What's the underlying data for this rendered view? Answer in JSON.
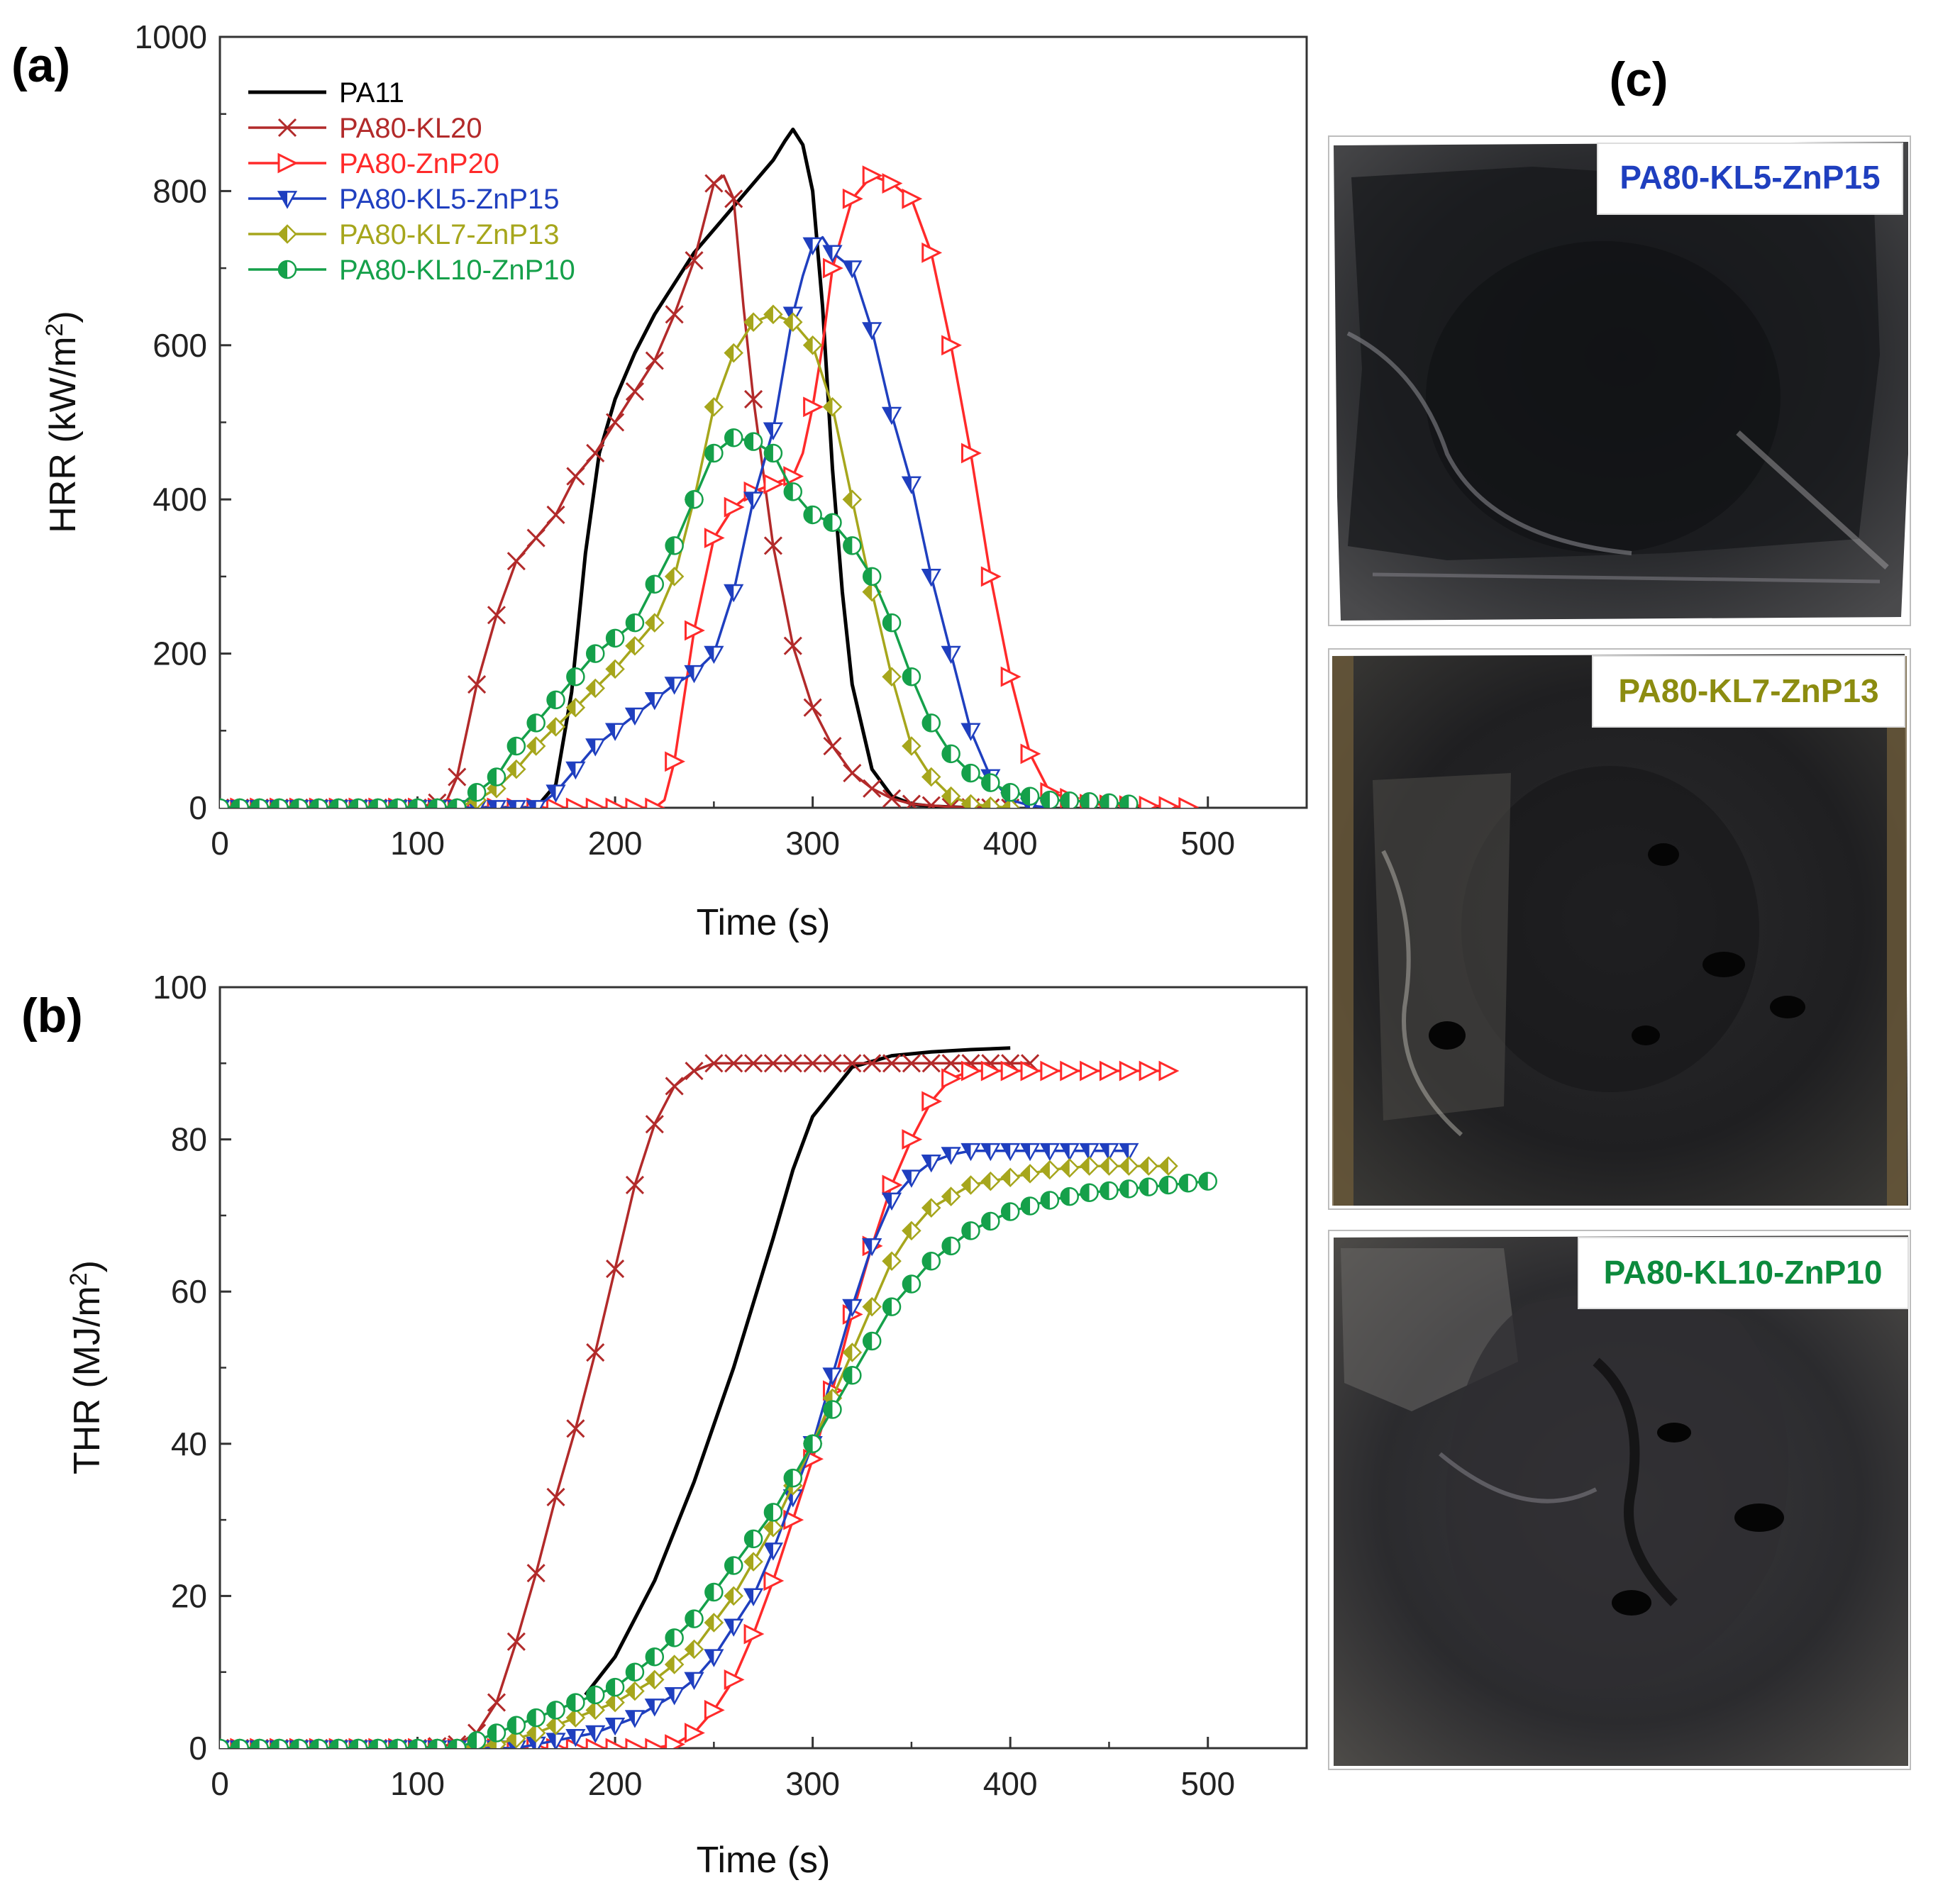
{
  "figure": {
    "panel_labels": [
      "(a)",
      "(b)",
      "(c)"
    ],
    "photo_labels": [
      {
        "text": "PA80-KL5-ZnP15",
        "color": "#1f3fbf"
      },
      {
        "text": "PA80-KL7-ZnP13",
        "color": "#8c8c10"
      },
      {
        "text": "PA80-KL10-ZnP10",
        "color": "#0c8a3c"
      }
    ]
  },
  "chart_data": [
    {
      "type": "line",
      "panel": "(a)",
      "xlabel": "Time (s)",
      "ylabel": "HRR (kW/m2)",
      "ylabel_main": "HRR (kW/m",
      "ylabel_sup": "2",
      "ylabel_end": ")",
      "xlim": [
        0,
        550
      ],
      "ylim": [
        0,
        1000
      ],
      "xticks": [
        0,
        100,
        200,
        300,
        400,
        500
      ],
      "yticks": [
        0,
        200,
        400,
        600,
        800,
        1000
      ],
      "legend": "top-left",
      "series": [
        {
          "name": "PA11",
          "color": "#000000",
          "marker": "none",
          "x": [
            0,
            160,
            170,
            178,
            185,
            192,
            200,
            210,
            220,
            230,
            240,
            250,
            260,
            270,
            280,
            286,
            290,
            295,
            300,
            305,
            310,
            315,
            320,
            330,
            340,
            350,
            360,
            380,
            400
          ],
          "y": [
            0,
            0,
            30,
            150,
            330,
            460,
            530,
            590,
            640,
            680,
            720,
            750,
            780,
            810,
            840,
            865,
            880,
            860,
            800,
            650,
            440,
            280,
            160,
            50,
            15,
            5,
            2,
            0,
            0
          ]
        },
        {
          "name": "PA80-KL20",
          "color": "#b22a2a",
          "marker": "x",
          "x": [
            0,
            100,
            115,
            120,
            130,
            140,
            150,
            160,
            170,
            180,
            190,
            200,
            210,
            220,
            230,
            240,
            245,
            250,
            255,
            260,
            265,
            270,
            280,
            290,
            300,
            310,
            320,
            330,
            340,
            350,
            370,
            400
          ],
          "y": [
            0,
            0,
            10,
            40,
            160,
            250,
            320,
            350,
            380,
            430,
            460,
            500,
            540,
            580,
            640,
            710,
            760,
            810,
            820,
            790,
            650,
            530,
            340,
            210,
            130,
            80,
            45,
            25,
            12,
            5,
            1,
            0
          ]
        },
        {
          "name": "PA80-ZnP20",
          "color": "#ff2a2a",
          "marker": "triangle-right",
          "x": [
            0,
            220,
            225,
            230,
            240,
            250,
            260,
            270,
            280,
            290,
            295,
            300,
            305,
            310,
            320,
            330,
            340,
            350,
            360,
            370,
            380,
            390,
            400,
            410,
            420,
            440,
            460,
            480,
            495
          ],
          "y": [
            0,
            0,
            10,
            60,
            230,
            350,
            390,
            410,
            420,
            430,
            460,
            520,
            600,
            700,
            790,
            820,
            810,
            790,
            720,
            600,
            460,
            300,
            170,
            70,
            20,
            5,
            3,
            2,
            0
          ]
        },
        {
          "name": "PA80-KL5-ZnP15",
          "color": "#1f3fbf",
          "marker": "triangle-down",
          "x": [
            0,
            160,
            170,
            180,
            190,
            200,
            210,
            220,
            230,
            240,
            250,
            260,
            270,
            280,
            290,
            295,
            300,
            305,
            310,
            320,
            330,
            340,
            350,
            360,
            370,
            380,
            390,
            400,
            410,
            420
          ],
          "y": [
            0,
            0,
            20,
            50,
            80,
            100,
            120,
            140,
            160,
            175,
            200,
            280,
            400,
            490,
            640,
            690,
            730,
            740,
            720,
            700,
            620,
            510,
            420,
            300,
            200,
            100,
            40,
            10,
            3,
            0
          ]
        },
        {
          "name": "PA80-KL7-ZnP13",
          "color": "#a6a61c",
          "marker": "half-diamond",
          "x": [
            0,
            120,
            130,
            140,
            150,
            160,
            170,
            180,
            190,
            200,
            210,
            220,
            230,
            240,
            250,
            260,
            270,
            280,
            290,
            300,
            310,
            320,
            330,
            340,
            350,
            360,
            370,
            380,
            390,
            400
          ],
          "y": [
            0,
            0,
            10,
            25,
            50,
            80,
            105,
            130,
            155,
            180,
            210,
            240,
            300,
            400,
            520,
            590,
            630,
            640,
            630,
            600,
            520,
            400,
            280,
            170,
            80,
            40,
            15,
            5,
            2,
            0
          ]
        },
        {
          "name": "PA80-KL10-ZnP10",
          "color": "#15a04a",
          "marker": "half-circle",
          "x": [
            0,
            120,
            130,
            140,
            150,
            160,
            170,
            180,
            190,
            200,
            210,
            220,
            230,
            240,
            250,
            260,
            270,
            280,
            290,
            300,
            310,
            320,
            330,
            340,
            350,
            360,
            370,
            380,
            400,
            420,
            440,
            460
          ],
          "y": [
            0,
            0,
            20,
            40,
            80,
            110,
            140,
            170,
            200,
            220,
            240,
            290,
            340,
            400,
            460,
            480,
            475,
            460,
            410,
            380,
            370,
            340,
            300,
            240,
            170,
            110,
            70,
            45,
            20,
            10,
            8,
            5
          ]
        }
      ]
    },
    {
      "type": "line",
      "panel": "(b)",
      "xlabel": "Time (s)",
      "ylabel": "THR (MJ/m2)",
      "ylabel_main": "THR (MJ/m",
      "ylabel_sup": "2",
      "ylabel_end": ")",
      "xlim": [
        0,
        550
      ],
      "ylim": [
        0,
        100
      ],
      "xticks": [
        0,
        100,
        200,
        300,
        400,
        500
      ],
      "yticks": [
        0,
        20,
        40,
        60,
        80,
        100
      ],
      "series": [
        {
          "name": "PA11",
          "color": "#000000",
          "marker": "none",
          "x": [
            185,
            200,
            220,
            240,
            260,
            280,
            290,
            300,
            320,
            340,
            360,
            380,
            400
          ],
          "y": [
            7,
            12,
            22,
            35,
            50,
            67,
            76,
            83,
            89.5,
            91,
            91.5,
            91.8,
            92
          ]
        },
        {
          "name": "PA80-KL20",
          "color": "#b22a2a",
          "marker": "x",
          "x": [
            0,
            100,
            120,
            130,
            140,
            150,
            160,
            170,
            180,
            190,
            200,
            210,
            220,
            230,
            240,
            250,
            260,
            270,
            280,
            300,
            320,
            340,
            360,
            380,
            400,
            410
          ],
          "y": [
            0,
            0,
            0.5,
            2,
            6,
            14,
            23,
            33,
            42,
            52,
            63,
            74,
            82,
            87,
            89,
            90,
            90,
            90,
            90,
            90,
            90,
            90,
            90,
            90,
            90,
            90
          ]
        },
        {
          "name": "PA80-ZnP20",
          "color": "#ff2a2a",
          "marker": "triangle-right",
          "x": [
            0,
            200,
            220,
            230,
            240,
            250,
            260,
            270,
            280,
            290,
            300,
            310,
            320,
            330,
            340,
            350,
            360,
            370,
            380,
            400,
            420,
            440,
            460,
            480
          ],
          "y": [
            0,
            0,
            0,
            0.5,
            2,
            5,
            9,
            15,
            22,
            30,
            38,
            47,
            57,
            66,
            74,
            80,
            85,
            88,
            89,
            89,
            89,
            89,
            89,
            89
          ]
        },
        {
          "name": "PA80-KL5-ZnP15",
          "color": "#1f3fbf",
          "marker": "triangle-down",
          "x": [
            0,
            150,
            160,
            170,
            180,
            190,
            200,
            210,
            220,
            230,
            240,
            250,
            260,
            270,
            280,
            290,
            300,
            310,
            320,
            330,
            340,
            350,
            360,
            370,
            380,
            400,
            420,
            440,
            460
          ],
          "y": [
            0,
            0,
            0.5,
            1,
            1.5,
            2,
            3,
            4,
            5.5,
            7,
            9,
            12,
            16,
            20,
            26,
            33,
            40,
            49,
            58,
            66,
            72,
            75,
            77,
            78,
            78.5,
            78.5,
            78.5,
            78.5,
            78.5
          ]
        },
        {
          "name": "PA80-KL7-ZnP13",
          "color": "#a6a61c",
          "marker": "half-diamond",
          "x": [
            0,
            120,
            140,
            160,
            180,
            200,
            220,
            240,
            260,
            280,
            300,
            320,
            330,
            340,
            350,
            360,
            380,
            400,
            420,
            440,
            460,
            480
          ],
          "y": [
            0,
            0,
            0.5,
            2,
            4,
            6,
            9,
            13,
            20,
            29,
            40,
            52,
            58,
            64,
            68,
            71,
            74,
            75,
            76,
            76.5,
            76.5,
            76.5
          ]
        },
        {
          "name": "PA80-KL10-ZnP10",
          "color": "#15a04a",
          "marker": "half-circle",
          "x": [
            0,
            120,
            140,
            160,
            180,
            200,
            220,
            240,
            260,
            280,
            300,
            320,
            340,
            360,
            380,
            400,
            420,
            440,
            460,
            480,
            500
          ],
          "y": [
            0,
            0,
            2,
            4,
            6,
            8,
            12,
            17,
            24,
            31,
            40,
            49,
            58,
            64,
            68,
            70.5,
            72,
            73,
            73.5,
            74,
            74.5
          ]
        }
      ]
    }
  ]
}
